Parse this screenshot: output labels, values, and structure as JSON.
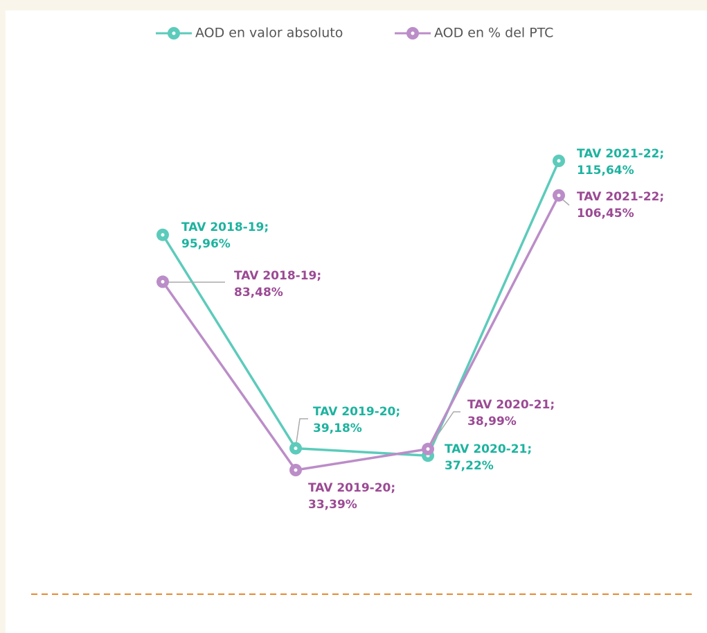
{
  "chart_data": {
    "type": "line",
    "categories": [
      null,
      null,
      null,
      null
    ],
    "series": [
      {
        "name": "AOD en valor absoluto",
        "color": "#5ccbbb",
        "label_color": "#1db39f",
        "values": [
          95.96,
          39.18,
          37.22,
          115.64
        ],
        "value_labels": [
          "TAV 2018-19; 95,96%",
          "TAV 2019-20; 39,18%",
          "TAV 2020-21; 37,22%",
          "TAV 2021-22; 115,64%"
        ]
      },
      {
        "name": "AOD en % del PTC",
        "color": "#bb8dc8",
        "label_color": "#9b4a94",
        "values": [
          83.48,
          33.39,
          38.99,
          106.45
        ],
        "value_labels": [
          "TAV 2018-19; 83,48%",
          "TAV 2019-20; 33,39%",
          "TAV 2020-21; 38,99%",
          "TAV 2021-22; 106,45%"
        ]
      }
    ],
    "legend": "top",
    "grid": false
  }
}
